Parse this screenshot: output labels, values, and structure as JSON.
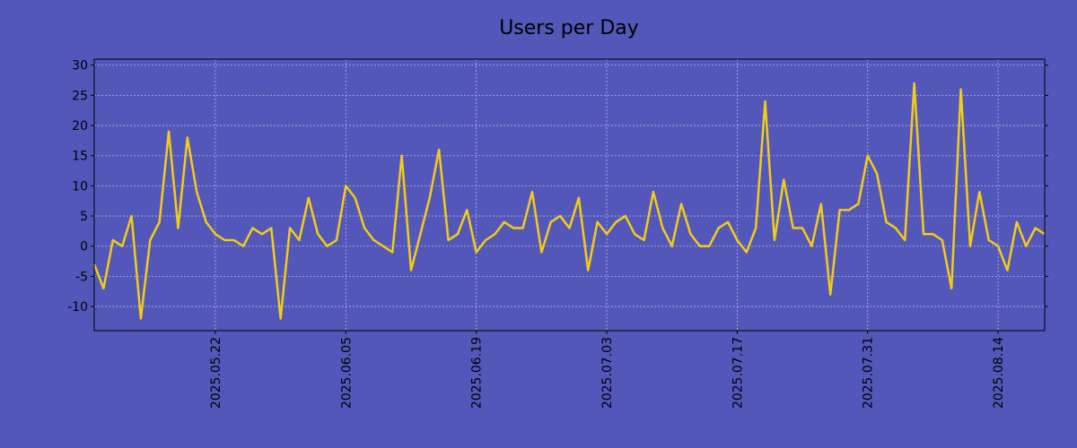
{
  "chart_data": {
    "type": "line",
    "title": "Users per Day",
    "xlabel": "",
    "ylabel": "",
    "grid": true,
    "colors": {
      "background": "#5457BA",
      "line": "#F2CC17",
      "grid": "#B4B6E0",
      "axis": "#000000"
    },
    "x_start": "2025-05-09",
    "x_step_days": 1,
    "xlim_days": [
      0,
      102
    ],
    "ylim": [
      -14,
      31
    ],
    "y_ticks": [
      -10,
      -5,
      0,
      5,
      10,
      15,
      20,
      25,
      30
    ],
    "x_ticks": [
      {
        "day": 13,
        "label": "2025.05.22"
      },
      {
        "day": 27,
        "label": "2025.06.05"
      },
      {
        "day": 41,
        "label": "2025.06.19"
      },
      {
        "day": 55,
        "label": "2025.07.03"
      },
      {
        "day": 69,
        "label": "2025.07.17"
      },
      {
        "day": 83,
        "label": "2025.07.31"
      },
      {
        "day": 97,
        "label": "2025.08.14"
      }
    ],
    "series": [
      {
        "name": "Users",
        "values": [
          -3,
          -7,
          1,
          0,
          5,
          -12,
          1,
          4,
          19,
          3,
          18,
          9,
          4,
          2,
          1,
          1,
          0,
          3,
          2,
          3,
          -12,
          3,
          1,
          8,
          2,
          0,
          1,
          10,
          8,
          3,
          1,
          0,
          -1,
          15,
          -4,
          2,
          8,
          16,
          1,
          2,
          6,
          -1,
          1,
          2,
          4,
          3,
          3,
          9,
          -1,
          4,
          5,
          3,
          8,
          -4,
          4,
          2,
          4,
          5,
          2,
          1,
          9,
          3,
          0,
          7,
          2,
          0,
          0,
          3,
          4,
          1,
          -1,
          3,
          24,
          1,
          11,
          3,
          3,
          0,
          7,
          -8,
          6,
          6,
          7,
          15,
          12,
          4,
          3,
          1,
          27,
          2,
          2,
          1,
          -7,
          26,
          0,
          9,
          1,
          0,
          -4,
          4,
          0,
          3,
          2
        ]
      }
    ]
  }
}
